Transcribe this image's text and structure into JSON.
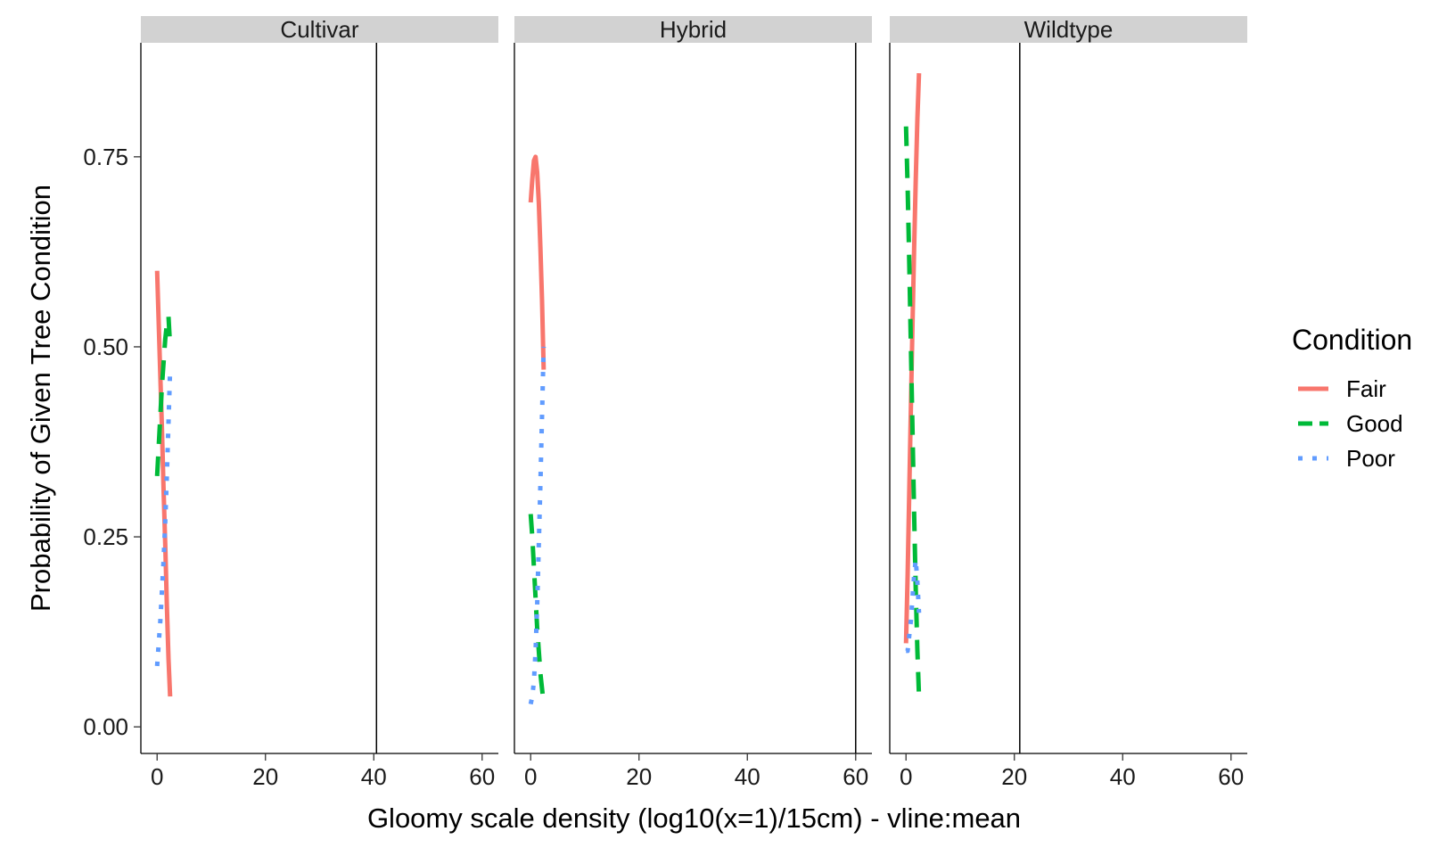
{
  "chart_data": {
    "type": "line",
    "facets": [
      "Cultivar",
      "Hybrid",
      "Wildtype"
    ],
    "xlabel": "Gloomy scale density (log10(x=1)/15cm) - vline:mean",
    "ylabel": "Probability of Given Tree Condition",
    "xlim": [
      -3,
      63
    ],
    "ylim": [
      -0.035,
      0.9
    ],
    "xticks": [
      0,
      20,
      40,
      60
    ],
    "yticks": [
      0.0,
      0.25,
      0.5,
      0.75
    ],
    "ytick_labels": [
      "0.00",
      "0.25",
      "0.50",
      "0.75"
    ],
    "grid": false,
    "legend": {
      "title": "Condition",
      "position": "right"
    },
    "series_style": [
      {
        "name": "Fair",
        "color": "#F8766D",
        "dash": "solid"
      },
      {
        "name": "Good",
        "color": "#00BA38",
        "dash": "dashed"
      },
      {
        "name": "Poor",
        "color": "#619CFF",
        "dash": "dotted"
      }
    ],
    "panels": [
      {
        "facet": "Cultivar",
        "vline_mean": 40.5,
        "series": [
          {
            "name": "Fair",
            "x": [
              0.0,
              0.3,
              0.6,
              0.9,
              1.2,
              1.5,
              1.8,
              2.1,
              2.4
            ],
            "y": [
              0.6,
              0.53,
              0.46,
              0.39,
              0.31,
              0.24,
              0.16,
              0.09,
              0.04
            ]
          },
          {
            "name": "Good",
            "x": [
              0.0,
              0.3,
              0.6,
              0.9,
              1.2,
              1.5,
              1.8,
              2.1,
              2.4
            ],
            "y": [
              0.33,
              0.37,
              0.41,
              0.45,
              0.48,
              0.51,
              0.53,
              0.54,
              0.5
            ]
          },
          {
            "name": "Poor",
            "x": [
              0.0,
              0.3,
              0.6,
              0.9,
              1.2,
              1.5,
              1.8,
              2.1,
              2.4
            ],
            "y": [
              0.08,
              0.11,
              0.14,
              0.18,
              0.22,
              0.27,
              0.33,
              0.4,
              0.47
            ]
          }
        ]
      },
      {
        "facet": "Hybrid",
        "vline_mean": 60.0,
        "series": [
          {
            "name": "Fair",
            "x": [
              0.0,
              0.3,
              0.6,
              0.9,
              1.2,
              1.5,
              1.8,
              2.1,
              2.4
            ],
            "y": [
              0.69,
              0.72,
              0.745,
              0.75,
              0.73,
              0.69,
              0.63,
              0.56,
              0.47
            ]
          },
          {
            "name": "Good",
            "x": [
              0.0,
              0.3,
              0.6,
              0.9,
              1.2,
              1.5,
              1.8,
              2.1,
              2.4
            ],
            "y": [
              0.28,
              0.25,
              0.21,
              0.17,
              0.13,
              0.1,
              0.07,
              0.05,
              0.03
            ]
          },
          {
            "name": "Poor",
            "x": [
              0.0,
              0.3,
              0.6,
              0.9,
              1.2,
              1.5,
              1.8,
              2.1,
              2.4
            ],
            "y": [
              0.03,
              0.04,
              0.06,
              0.1,
              0.16,
              0.24,
              0.32,
              0.41,
              0.5
            ]
          }
        ]
      },
      {
        "facet": "Wildtype",
        "vline_mean": 21.0,
        "series": [
          {
            "name": "Fair",
            "x": [
              0.0,
              0.3,
              0.6,
              0.9,
              1.2,
              1.5,
              1.8,
              2.1,
              2.4
            ],
            "y": [
              0.11,
              0.2,
              0.31,
              0.42,
              0.53,
              0.63,
              0.72,
              0.8,
              0.86
            ]
          },
          {
            "name": "Good",
            "x": [
              0.0,
              0.3,
              0.6,
              0.9,
              1.2,
              1.5,
              1.8,
              2.1,
              2.4
            ],
            "y": [
              0.79,
              0.71,
              0.61,
              0.5,
              0.39,
              0.28,
              0.18,
              0.1,
              0.04
            ]
          },
          {
            "name": "Poor",
            "x": [
              0.0,
              0.3,
              0.6,
              0.9,
              1.2,
              1.5,
              1.8,
              2.1,
              2.4
            ],
            "y": [
              0.1,
              0.1,
              0.12,
              0.14,
              0.17,
              0.2,
              0.22,
              0.19,
              0.15
            ]
          }
        ]
      }
    ]
  }
}
